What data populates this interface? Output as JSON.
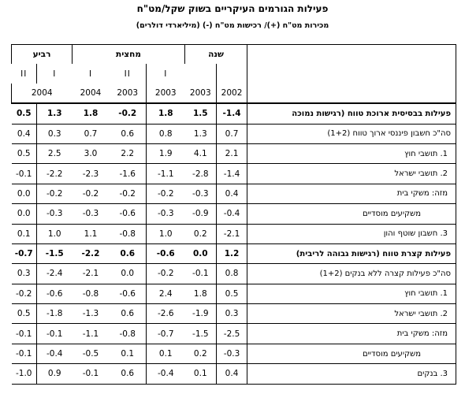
{
  "title": "פעילות הגורמים העיקריים בשוק שקל/מט\"ח",
  "subtitle": "מכירות מט\"ח (+)/ רכישות מט\"ח (-) (מיליארדי דולרים)",
  "headers": {
    "groups": {
      "year": "שנה",
      "half": "מחצית",
      "quarter": "רביע"
    },
    "sub": [
      "2003",
      "2002",
      "I",
      "II",
      "I",
      "II",
      "I"
    ],
    "quarter_year": "2004",
    "quarter_sub": [
      "II",
      "I"
    ],
    "half_years": [
      "2003",
      "2003",
      "2004"
    ],
    "year_years": [
      "2003",
      "2002"
    ]
  },
  "rows": [
    {
      "label": "פעילות בבסיסית ארוכת טווח (רגישות נמוכה",
      "style": "bold",
      "values": [
        "0.5",
        "1.3",
        "1.8",
        "-0.2",
        "1.8",
        "1.5",
        "-1.4"
      ]
    },
    {
      "label": "סה\"כ חשבון פיננסי ארוך טווח (1+2)",
      "style": "normal",
      "values": [
        "0.4",
        "0.3",
        "0.7",
        "0.6",
        "0.8",
        "1.3",
        "0.7"
      ]
    },
    {
      "label": "1. תושבי חוץ",
      "style": "indent",
      "values": [
        "0.5",
        "2.5",
        "3.0",
        "2.2",
        "1.9",
        "4.1",
        "2.1"
      ]
    },
    {
      "label": "2. תושבי ישראל",
      "style": "indent",
      "values": [
        "-0.1",
        "-2.2",
        "-2.3",
        "-1.6",
        "-1.1",
        "-2.8",
        "-1.4"
      ]
    },
    {
      "label": "מזה:        משקי בית",
      "style": "sub",
      "values": [
        "0.0",
        "-0.2",
        "-0.2",
        "-0.2",
        "-0.2",
        "-0.3",
        "0.4"
      ]
    },
    {
      "label": "משקיעים מוסדיים",
      "style": "sub2",
      "values": [
        "0.0",
        "-0.3",
        "-0.3",
        "-0.6",
        "-0.3",
        "-0.9",
        "-0.4"
      ]
    },
    {
      "label": "3. חשבון שוטף והון",
      "style": "indent",
      "values": [
        "0.1",
        "1.0",
        "1.1",
        "-0.8",
        "1.0",
        "0.2",
        "-2.1"
      ]
    },
    {
      "label": "פעילות קצרת טווח (רגישות גבוהה לריבית)",
      "style": "bold",
      "values": [
        "-0.7",
        "-1.5",
        "-2.2",
        "0.6",
        "-0.6",
        "0.0",
        "1.2"
      ]
    },
    {
      "label": "סה\"כ פעילות קצרה ללא בנקים (1+2)",
      "style": "normal",
      "values": [
        "0.3",
        "-2.4",
        "-2.1",
        "0.0",
        "-0.2",
        "-0.1",
        "0.8"
      ]
    },
    {
      "label": "1. תושבי חוץ",
      "style": "indent",
      "values": [
        "-0.2",
        "-0.6",
        "-0.8",
        "-0.6",
        "2.4",
        "1.8",
        "0.5"
      ]
    },
    {
      "label": "2. תושבי ישראל",
      "style": "indent",
      "values": [
        "0.5",
        "-1.8",
        "-1.3",
        "0.6",
        "-2.6",
        "-1.9",
        "0.3"
      ]
    },
    {
      "label": "מזה:        משקי בית",
      "style": "sub",
      "values": [
        "-0.1",
        "-0.1",
        "-1.1",
        "-0.8",
        "-0.7",
        "-1.5",
        "-2.5"
      ]
    },
    {
      "label": "משקיעים מוסדיים",
      "style": "sub2",
      "values": [
        "-0.1",
        "-0.4",
        "-0.5",
        "0.1",
        "0.1",
        "0.2",
        "-0.3"
      ]
    },
    {
      "label": "3. בנקים",
      "style": "indent",
      "values": [
        "-1.0",
        "0.9",
        "-0.1",
        "0.6",
        "-0.4",
        "0.1",
        "0.4"
      ]
    }
  ]
}
